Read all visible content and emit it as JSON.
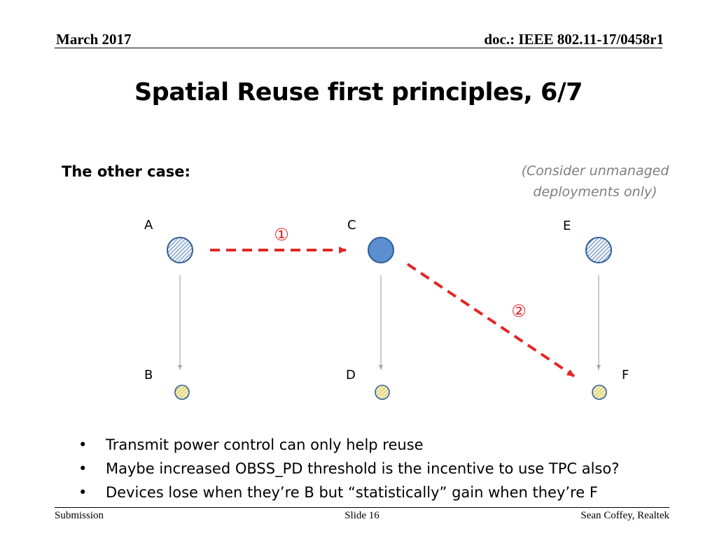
{
  "header": {
    "date": "March 2017",
    "doc": "doc.: IEEE 802.11-17/0458r1"
  },
  "title": "Spatial Reuse first principles, 6/7",
  "subheading": "The other case:",
  "note": [
    "(Consider unmanaged",
    "deployments only)"
  ],
  "diagram": {
    "nodes": [
      "A",
      "B",
      "C",
      "D",
      "E",
      "F"
    ],
    "step_labels": [
      "①",
      "②"
    ],
    "colors": {
      "ap_fill": "#5b8fd0",
      "ap_stroke": "#2e5f98",
      "hatch": "#2e5f98",
      "sta_fill": "#f6efb4",
      "sta_hatch": "#b5a23a",
      "link": "#a6a6a6",
      "interference": "#e32626"
    }
  },
  "bullets": [
    "Transmit power control can only help reuse",
    "Maybe increased OBSS_PD threshold is the incentive to use TPC also?",
    "Devices lose when they’re B but “statistically” gain when they’re F"
  ],
  "footer": {
    "left": "Submission",
    "center": "Slide 16",
    "right": "Sean Coffey, Realtek"
  }
}
